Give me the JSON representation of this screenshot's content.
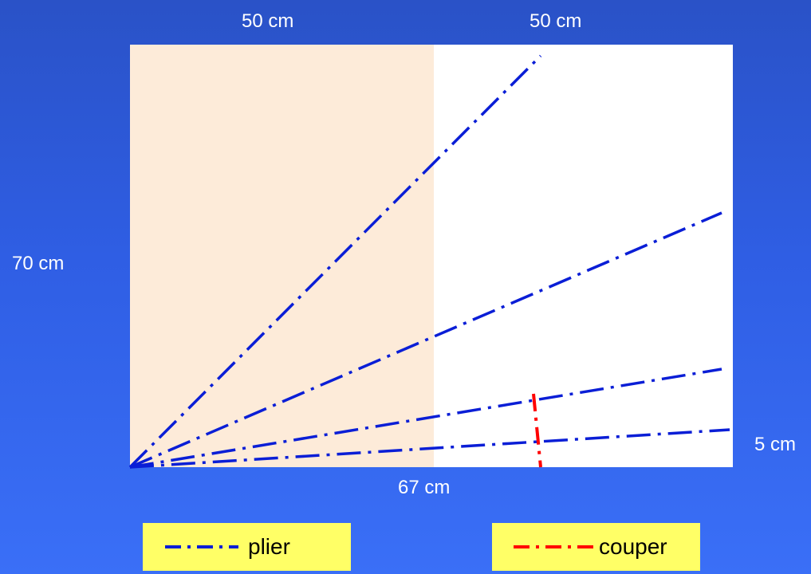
{
  "dimensions": {
    "top_left": "50 cm",
    "top_right": "50 cm",
    "height": "70 cm",
    "bottom": "67 cm",
    "right": "5 cm"
  },
  "colors": {
    "background": "#2f5ee4",
    "left_panel": "#fdebd9",
    "right_panel": "#ffffff",
    "fold_line": "#0a1ed6",
    "cut_line": "#ff0000",
    "legend_box": "#ffff66"
  },
  "legend": {
    "fold_label": "plier",
    "cut_label": "couper"
  }
}
